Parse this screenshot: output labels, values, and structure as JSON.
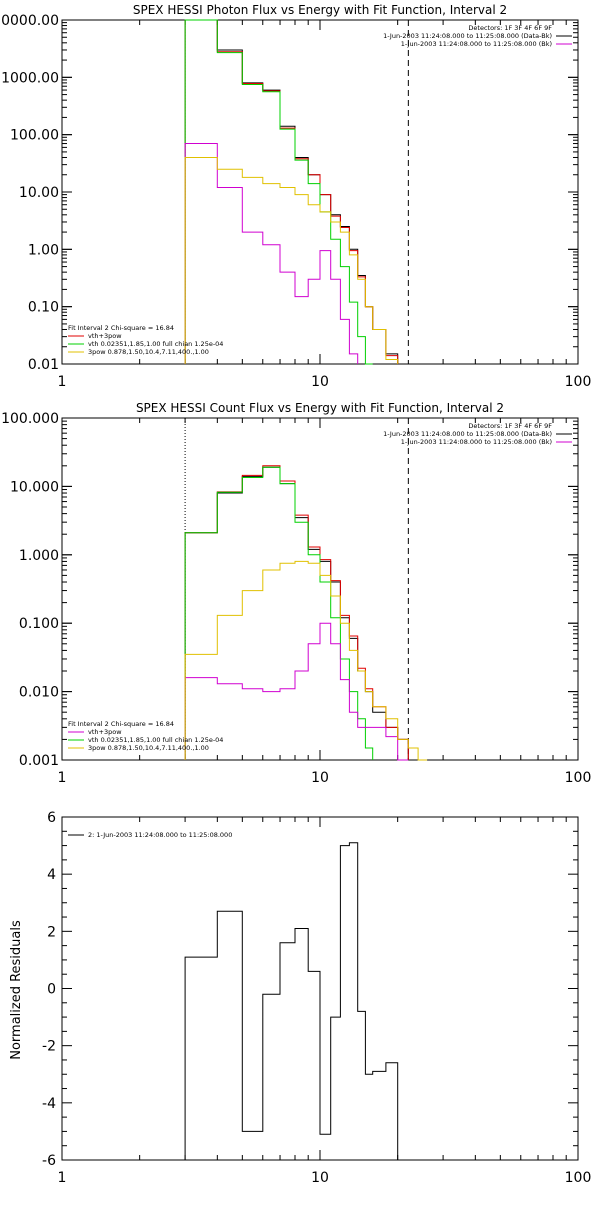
{
  "colors": {
    "black": "#000000",
    "red": "#e00000",
    "green": "#00d000",
    "magenta": "#d000d0",
    "yellow": "#e0c000"
  },
  "chart_data": [
    {
      "type": "line",
      "title": "SPEX HESSI Photon Flux vs Energy with Fit Function, Interval 2",
      "xscale": "log",
      "yscale": "log",
      "xlim": [
        1,
        100
      ],
      "ylim": [
        0.01,
        10000
      ],
      "xticks": [
        "1",
        "10",
        "100"
      ],
      "yticks": [
        "10000.00",
        "1000.00",
        "100.00",
        "10.00",
        "1.00",
        "0.10",
        "0.01"
      ],
      "edges": [
        3,
        4,
        5,
        6,
        7,
        8,
        9,
        10,
        11,
        12,
        13,
        14,
        15,
        16,
        18,
        20,
        22,
        24,
        26
      ],
      "series": [
        {
          "color": "black",
          "values": [
            10000,
            3000,
            800,
            600,
            140,
            40,
            20,
            9,
            4,
            2.5,
            1,
            0.35,
            0.1,
            0.04,
            0.015,
            null,
            null,
            null
          ]
        },
        {
          "color": "red",
          "values": [
            10000,
            2800,
            780,
            580,
            130,
            38,
            20,
            9,
            3.8,
            2.4,
            0.95,
            0.33,
            0.1,
            0.04,
            0.014,
            null,
            null,
            null
          ]
        },
        {
          "color": "green",
          "values": [
            10000,
            2700,
            750,
            560,
            125,
            36,
            14,
            4.5,
            1.5,
            0.5,
            0.12,
            0.03,
            0.01,
            null,
            null,
            null,
            null,
            null
          ]
        },
        {
          "color": "magenta",
          "values": [
            70,
            12,
            2,
            1.2,
            0.4,
            0.15,
            0.3,
            0.95,
            0.3,
            0.06,
            0.015,
            null,
            null,
            null,
            null,
            null,
            null,
            null
          ]
        },
        {
          "color": "yellow",
          "values": [
            40,
            25,
            18,
            14,
            12,
            9,
            6,
            4.5,
            3,
            2,
            0.8,
            0.3,
            0.1,
            0.04,
            0.012,
            null,
            null,
            null
          ]
        }
      ],
      "vlines": [
        {
          "x": 3,
          "style": "dotted",
          "color": "yellow"
        },
        {
          "x": 22,
          "style": "dashed",
          "color": "black"
        }
      ],
      "legend_right": [
        "Detectors: 1F 3F 4F 6F 9F",
        "1-Jun-2003 11:24:08.000 to 11:25:08.000 (Data-Bk)",
        "1-Jun-2003 11:24:08.000 to 11:25:08.000 (Bk)"
      ],
      "legend_right_colors": [
        "none",
        "black",
        "magenta"
      ],
      "legend_left": [
        "Fit Interval 2   Chi-square = 16.84",
        "vth+3pow",
        "vth 0.02351,1.85,1.00  full chian 1.25e-04",
        "3pow 0.878,1.50,10.4,7.11,400.,1.00"
      ],
      "legend_left_colors": [
        "none",
        "red",
        "green",
        "yellow"
      ]
    },
    {
      "type": "line",
      "title": "SPEX HESSI Count Flux vs Energy with Fit Function, Interval 2",
      "xscale": "log",
      "yscale": "log",
      "xlim": [
        1,
        100
      ],
      "ylim": [
        0.001,
        100
      ],
      "xticks": [
        "1",
        "10",
        "100"
      ],
      "yticks": [
        "100.000",
        "10.000",
        "1.000",
        "0.100",
        "0.010",
        "0.001"
      ],
      "edges": [
        3,
        4,
        5,
        6,
        7,
        8,
        9,
        10,
        11,
        12,
        13,
        14,
        15,
        16,
        18,
        20,
        22,
        24,
        26,
        28
      ],
      "series": [
        {
          "color": "black",
          "values": [
            2.1,
            8,
            14,
            19,
            11,
            3.5,
            1.2,
            0.8,
            0.4,
            0.12,
            0.06,
            0.02,
            0.01,
            0.005,
            0.003,
            0.002,
            null,
            null,
            null
          ]
        },
        {
          "color": "red",
          "values": [
            2.1,
            8.3,
            14.5,
            20,
            12,
            3.8,
            1.3,
            0.85,
            0.42,
            0.13,
            0.065,
            0.022,
            0.011,
            0.006,
            0.003,
            0.002,
            null,
            null,
            null
          ]
        },
        {
          "color": "green",
          "values": [
            2.1,
            8.2,
            13.5,
            19,
            11,
            3,
            1,
            0.4,
            0.12,
            0.03,
            0.01,
            0.004,
            0.0015,
            null,
            null,
            null,
            null,
            null,
            null
          ]
        },
        {
          "color": "magenta",
          "values": [
            0.016,
            0.013,
            0.011,
            0.01,
            0.011,
            0.02,
            0.05,
            0.1,
            0.05,
            0.015,
            0.005,
            0.003,
            0.003,
            0.003,
            0.0022,
            0.001,
            null,
            null,
            null
          ]
        },
        {
          "color": "yellow",
          "values": [
            0.035,
            0.13,
            0.3,
            0.6,
            0.75,
            0.8,
            0.75,
            0.5,
            0.25,
            0.1,
            0.04,
            0.02,
            0.01,
            0.006,
            0.004,
            0.002,
            0.0015,
            0.001,
            null
          ]
        }
      ],
      "vlines": [
        {
          "x": 3,
          "style": "dotted",
          "color": "black"
        },
        {
          "x": 22,
          "style": "dashed",
          "color": "black"
        }
      ],
      "legend_right": [
        "Detectors: 1F 3F 4F 6F 9F",
        "1-Jun-2003 11:24:08.000 to 11:25:08.000 (Data-Bk)",
        "1-Jun-2003 11:24:08.000 to 11:25:08.000 (Bk)"
      ],
      "legend_right_colors": [
        "none",
        "black",
        "magenta"
      ],
      "legend_left": [
        "Fit Interval 2   Chi-square = 16.84",
        "vth+3pow",
        "vth 0.02351,1.85,1.00  full chian 1.25e-04",
        "3pow 0.878,1.50,10.4,7.11,400.,1.00"
      ],
      "legend_left_colors": [
        "none",
        "magenta",
        "green",
        "yellow"
      ]
    },
    {
      "type": "line",
      "title": "",
      "ylabel": "Normalized Residuals",
      "xscale": "log",
      "yscale": "linear",
      "xlim": [
        1,
        100
      ],
      "ylim": [
        -6,
        6
      ],
      "xticks": [
        "1",
        "10",
        "100"
      ],
      "yticks": [
        "6",
        "4",
        "2",
        "0",
        "-2",
        "-4",
        "-6"
      ],
      "edges": [
        3,
        4,
        5,
        6,
        7,
        8,
        9,
        10,
        11,
        12,
        13,
        14,
        15,
        16,
        18,
        20,
        22
      ],
      "series": [
        {
          "color": "black",
          "values": [
            1.1,
            2.7,
            -5.0,
            -0.2,
            1.6,
            2.1,
            0.6,
            -5.1,
            -1.0,
            5.0,
            5.1,
            -0.8,
            -3.0,
            -2.9,
            -2.6,
            null
          ]
        }
      ],
      "legend_left": [
        "2:  1-Jun-2003 11:24:08.000 to 11:25:08.000"
      ],
      "legend_left_colors": [
        "black"
      ]
    }
  ]
}
